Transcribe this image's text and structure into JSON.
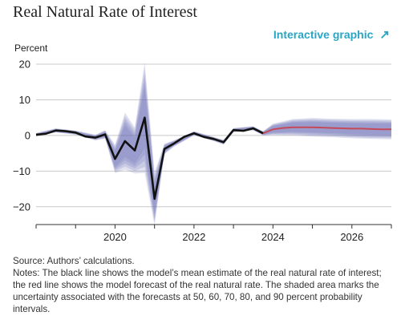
{
  "header": {
    "title": "Real Natural Rate of Interest",
    "interactive_label": "Interactive graphic",
    "interactive_icon": "arrow-up-right-icon"
  },
  "footer": {
    "source": "Source: Authors’ calculations.",
    "notes": "Notes: The black line shows the model’s mean estimate of the real natural rate of interest; the red line shows the model forecast of the real natural rate. The shaded area marks the uncertainty associated with the forecasts at 50, 60, 70, 80, and 90 percent probability intervals."
  },
  "colors": {
    "mean_line": "#111111",
    "forecast_line": "#c44a5a",
    "band": "#6b6fb3",
    "accent": "#2aa6c4",
    "grid": "#c8c8c8"
  },
  "chart_data": {
    "type": "line",
    "ylabel": "Percent",
    "xlim": [
      2018.0,
      2027.0
    ],
    "ylim": [
      -25,
      20
    ],
    "yticks": [
      20,
      10,
      0,
      -10,
      -20
    ],
    "xticks": [
      2020,
      2022,
      2024,
      2026
    ],
    "series": [
      {
        "role": "mean",
        "x": [
          2018.0,
          2018.25,
          2018.5,
          2018.75,
          2019.0,
          2019.25,
          2019.5,
          2019.75,
          2020.0,
          2020.25,
          2020.5,
          2020.75,
          2021.0,
          2021.25,
          2021.5,
          2021.75,
          2022.0,
          2022.25,
          2022.5,
          2022.75,
          2023.0,
          2023.25,
          2023.5,
          2023.75
        ],
        "values": [
          0.2,
          0.5,
          1.4,
          1.2,
          0.8,
          -0.3,
          -0.6,
          0.3,
          -6.6,
          -1.6,
          -4.2,
          5.0,
          -17.8,
          -3.8,
          -2.2,
          -0.4,
          0.6,
          -0.4,
          -1.0,
          -1.9,
          1.5,
          1.3,
          2.0,
          0.6
        ]
      },
      {
        "role": "forecast",
        "x": [
          2023.75,
          2024.0,
          2024.25,
          2024.5,
          2024.75,
          2025.0,
          2025.25,
          2025.5,
          2025.75,
          2026.0,
          2026.25,
          2026.5,
          2026.75,
          2027.0
        ],
        "values": [
          0.6,
          1.7,
          2.1,
          2.3,
          2.3,
          2.3,
          2.2,
          2.1,
          2.0,
          1.9,
          1.9,
          1.8,
          1.7,
          1.7
        ]
      }
    ],
    "uncertainty": {
      "intervals": [
        50,
        60,
        70,
        80,
        90
      ],
      "x": [
        2018.0,
        2018.5,
        2019.0,
        2019.5,
        2019.75,
        2020.0,
        2020.25,
        2020.5,
        2020.75,
        2021.0,
        2021.25,
        2021.5,
        2022.0,
        2022.5,
        2022.75,
        2023.0,
        2023.5,
        2023.75,
        2024.0,
        2024.5,
        2025.0,
        2025.5,
        2026.0,
        2026.5,
        2027.0
      ],
      "half_width_90": [
        0.5,
        0.6,
        0.6,
        0.8,
        1.2,
        4.0,
        8.0,
        6.5,
        15.5,
        7.5,
        1.5,
        0.9,
        0.6,
        0.6,
        0.7,
        0.6,
        0.6,
        0.6,
        1.6,
        2.3,
        2.6,
        2.6,
        2.7,
        2.8,
        2.8
      ]
    }
  }
}
